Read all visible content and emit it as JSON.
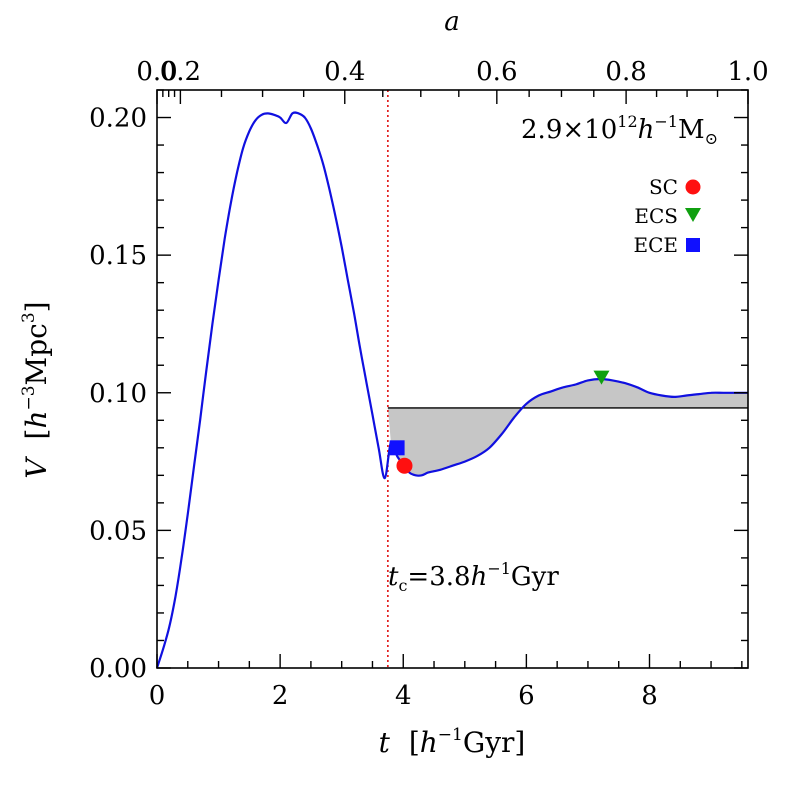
{
  "chart_data": {
    "type": "line",
    "mass_label": {
      "mantissa": "2.9",
      "times": "×",
      "base": "10",
      "exponent": "12",
      "h": "h",
      "hexp": "−1",
      "unit": "M",
      "sun": "⊙"
    },
    "xaxis": {
      "label_var": "t",
      "label_open": "[",
      "label_h": "h",
      "label_exp": "−1",
      "label_unit": "Gyr]",
      "xlim": [
        0,
        9.6
      ],
      "ticks": [
        0,
        2,
        4,
        6,
        8
      ],
      "tick_labels": [
        "0",
        "2",
        "4",
        "6",
        "8"
      ]
    },
    "yaxis": {
      "label_var": "V",
      "label_open": "[",
      "label_h": "h",
      "label_exp": "−3",
      "label_unit": "Mpc",
      "label_exp2": "3",
      "label_close": "]",
      "ylim": [
        0,
        0.21
      ],
      "ticks": [
        0,
        0.05,
        0.1,
        0.15,
        0.2
      ],
      "tick_labels": [
        "0.00",
        "0.05",
        "0.10",
        "0.15",
        "0.20"
      ]
    },
    "top_axis": {
      "label": "a",
      "ticks_t": [
        0,
        0.38,
        3.05,
        5.52,
        7.62,
        9.6
      ],
      "tick_labels": [
        "0.0",
        "0.2",
        "0.4",
        "0.6",
        "0.8",
        "1.0"
      ]
    },
    "collapse_time": {
      "t": 3.75,
      "label_var": "t",
      "label_sub": "c",
      "label_eq": "=3.8",
      "label_h": "h",
      "label_exp": "−1",
      "label_unit": "Gyr"
    },
    "reference_volume": 0.0945,
    "series": [
      {
        "color": "#1010e0",
        "x": [
          0,
          0.1,
          0.2,
          0.3,
          0.4,
          0.5,
          0.6,
          0.7,
          0.8,
          0.9,
          1.0,
          1.1,
          1.2,
          1.3,
          1.4,
          1.5,
          1.6,
          1.7,
          1.8,
          1.9,
          2.0,
          2.1,
          2.2,
          2.3,
          2.4,
          2.5,
          2.6,
          2.7,
          2.8,
          2.9,
          3.0,
          3.1,
          3.2,
          3.3,
          3.4,
          3.5,
          3.6,
          3.7,
          3.8,
          3.9,
          4.0,
          4.1,
          4.2,
          4.3,
          4.4,
          4.5,
          4.6,
          4.8,
          5.0,
          5.2,
          5.4,
          5.6,
          5.8,
          6.0,
          6.2,
          6.4,
          6.6,
          6.8,
          7.0,
          7.2,
          7.4,
          7.6,
          7.8,
          8.0,
          8.2,
          8.4,
          8.6,
          8.8,
          9.0,
          9.2,
          9.4,
          9.6
        ],
        "y": [
          0,
          0.007,
          0.015,
          0.026,
          0.04,
          0.056,
          0.073,
          0.09,
          0.108,
          0.125,
          0.141,
          0.156,
          0.169,
          0.18,
          0.189,
          0.195,
          0.199,
          0.201,
          0.2015,
          0.201,
          0.2,
          0.198,
          0.2015,
          0.2015,
          0.2,
          0.196,
          0.19,
          0.183,
          0.174,
          0.164,
          0.153,
          0.141,
          0.129,
          0.116,
          0.104,
          0.092,
          0.08,
          0.069,
          0.082,
          0.077,
          0.074,
          0.071,
          0.07,
          0.07,
          0.071,
          0.0715,
          0.072,
          0.0735,
          0.075,
          0.077,
          0.08,
          0.085,
          0.091,
          0.096,
          0.099,
          0.1005,
          0.102,
          0.103,
          0.1045,
          0.105,
          0.1045,
          0.1035,
          0.102,
          0.1,
          0.099,
          0.0985,
          0.099,
          0.0995,
          0.1,
          0.1,
          0.1,
          0.1
        ]
      }
    ],
    "markers": [
      {
        "name": "SC",
        "t": 4.02,
        "V": 0.0735,
        "color": "#ff1010",
        "shape": "circle"
      },
      {
        "name": "ECS",
        "t": 7.22,
        "V": 0.1055,
        "color": "#10a010",
        "shape": "triangle-down"
      },
      {
        "name": "ECE",
        "t": 3.9,
        "V": 0.08,
        "color": "#1010ff",
        "shape": "square"
      }
    ],
    "legend": [
      {
        "label": "SC",
        "color": "#ff1010",
        "shape": "circle"
      },
      {
        "label": "ECS",
        "color": "#10a010",
        "shape": "triangle-down"
      },
      {
        "label": "ECE",
        "color": "#1010ff",
        "shape": "square"
      }
    ],
    "legend_position": "top-right",
    "grid": false
  }
}
